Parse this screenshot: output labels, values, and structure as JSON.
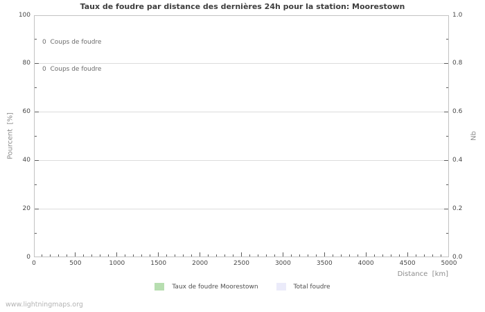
{
  "watermark": "www.lightningmaps.org",
  "chart_data": {
    "type": "line",
    "title": "Taux de foudre par distance des dernières 24h pour la station: Moorestown",
    "annotations": [
      "0  Coups de foudre",
      "0  Coups de foudre"
    ],
    "grid": "horizontal-major-only",
    "legend_position": "bottom-center",
    "x_axis": {
      "label": "Distance  [km]",
      "min": 0,
      "max": 5000,
      "major_tick_values": [
        0,
        500,
        1000,
        1500,
        2000,
        2500,
        3000,
        3500,
        4000,
        4500,
        5000
      ],
      "major_tick_labels": [
        "0",
        "500",
        "1000",
        "1500",
        "2000",
        "2500",
        "3000",
        "3500",
        "4000",
        "4500",
        "5000"
      ],
      "minor_tick_step": 100
    },
    "y_axis_left": {
      "label": "Pourcent  [%]",
      "min": 0,
      "max": 100,
      "major_tick_values": [
        0,
        20,
        40,
        60,
        80,
        100
      ],
      "major_tick_labels": [
        "0",
        "20",
        "40",
        "60",
        "80",
        "100"
      ],
      "minor_tick_step": 10
    },
    "y_axis_right": {
      "label": "Nb",
      "min": 0,
      "max": 1,
      "major_tick_values": [
        0,
        0.2,
        0.4,
        0.6,
        0.8,
        1
      ],
      "major_tick_labels": [
        "0.0",
        "0.2",
        "0.4",
        "0.6",
        "0.8",
        "1.0"
      ],
      "minor_tick_step": 0.1
    },
    "series": [
      {
        "name": "Taux de foudre Moorestown",
        "color": "#b7deb0",
        "axis": "left",
        "values": []
      },
      {
        "name": "Total foudre",
        "color": "#ebebfa",
        "axis": "right",
        "values": []
      }
    ]
  }
}
